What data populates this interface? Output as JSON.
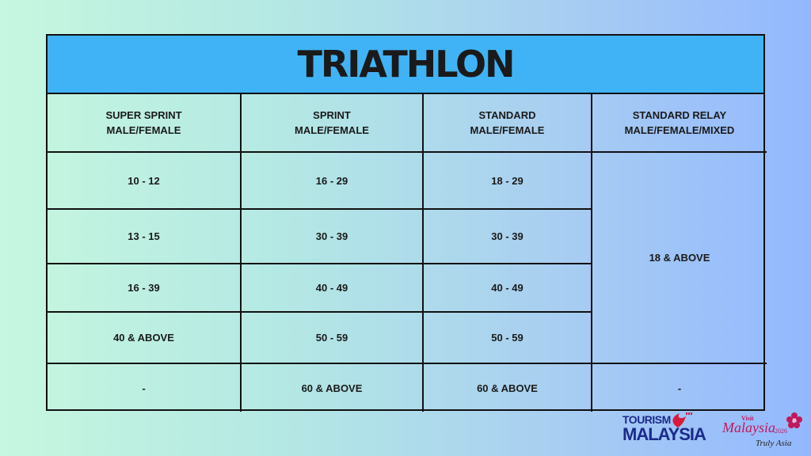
{
  "title": "TRIATHLON",
  "headers": [
    {
      "line1": "SUPER SPRINT",
      "line2": "MALE/FEMALE"
    },
    {
      "line1": "SPRINT",
      "line2": "MALE/FEMALE"
    },
    {
      "line1": "STANDARD",
      "line2": "MALE/FEMALE"
    },
    {
      "line1": "STANDARD RELAY",
      "line2": "MALE/FEMALE/MIXED"
    }
  ],
  "rows": [
    [
      "10 - 12",
      "16 - 29",
      "18 - 29"
    ],
    [
      "13 - 15",
      "30 - 39",
      "30 - 39"
    ],
    [
      "16 - 39",
      "40 - 49",
      "40 - 49"
    ],
    [
      "40 & ABOVE",
      "50 - 59",
      "50 - 59"
    ]
  ],
  "relay_merged": "18 & ABOVE",
  "last_row": [
    "-",
    "60 & ABOVE",
    "60 & ABOVE",
    "-"
  ],
  "logos": {
    "tourism_top": "TOURISM",
    "tourism_bottom": "MALAYSIA",
    "visit": "Visit",
    "malaysia": "Malaysia",
    "year": "2026",
    "truly_asia": "Truly Asia"
  },
  "colors": {
    "title_bar": "#3fb3f5",
    "border": "#111111",
    "brand_blue": "#1b2a8c",
    "brand_red": "#c2185b"
  }
}
